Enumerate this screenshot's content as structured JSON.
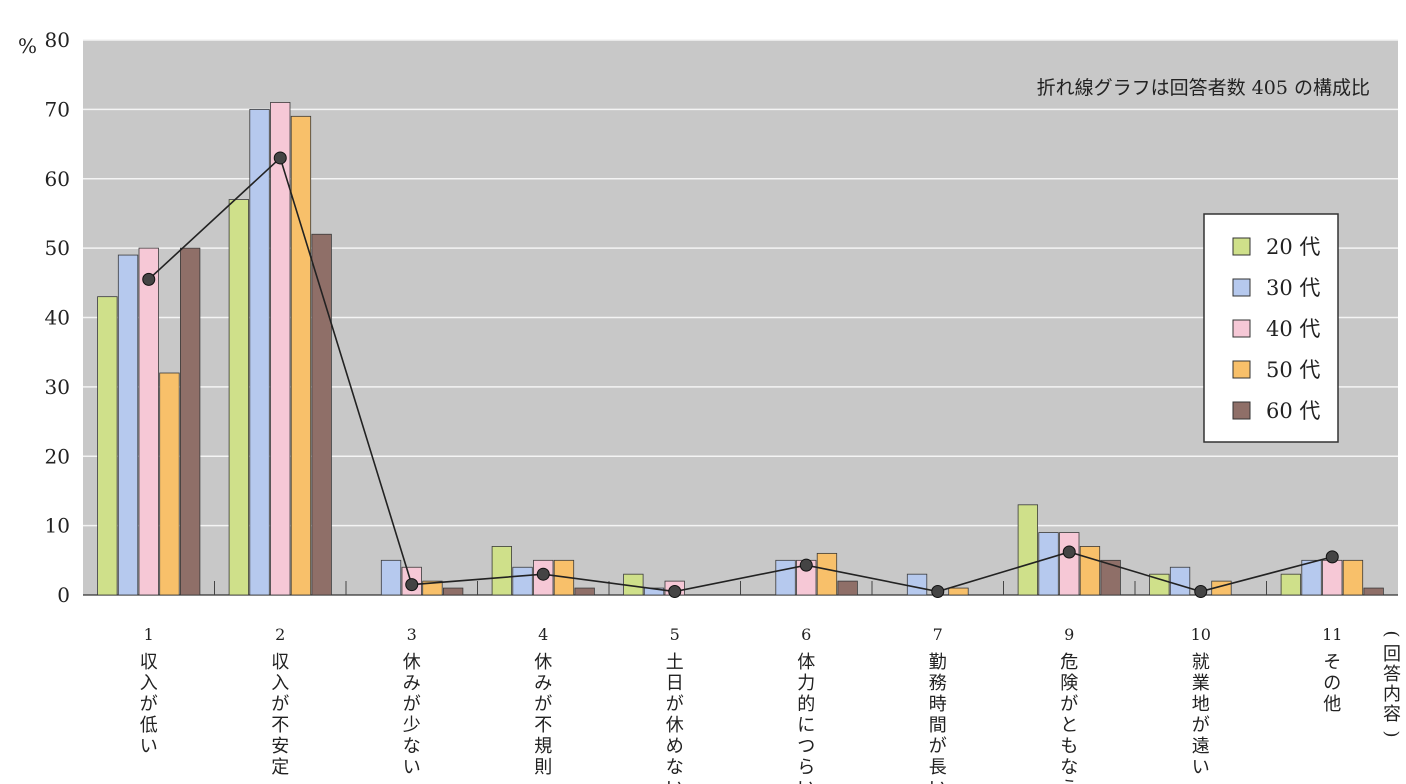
{
  "chart_data": {
    "type": "bar",
    "y_unit": "%",
    "x_unit": "(回答内容)",
    "note": "折れ線グラフは回答者数 405 の構成比",
    "ylim": [
      0,
      80
    ],
    "y_ticks": [
      0,
      10,
      20,
      30,
      40,
      50,
      60,
      70,
      80
    ],
    "grid": true,
    "legend_position": "right",
    "categories": [
      {
        "num": "1",
        "label": "収入が低い"
      },
      {
        "num": "2",
        "label": "収入が不安定"
      },
      {
        "num": "3",
        "label": "休みが少ない"
      },
      {
        "num": "4",
        "label": "休みが不規則"
      },
      {
        "num": "5",
        "label": "土日が休めない"
      },
      {
        "num": "6",
        "label": "体力的につらい"
      },
      {
        "num": "7",
        "label": "勤務時間が長い"
      },
      {
        "num": "9",
        "label": "危険がともなう"
      },
      {
        "num": "10",
        "label": "就業地が遠い"
      },
      {
        "num": "11",
        "label": "その他"
      }
    ],
    "series": [
      {
        "name": "20 代",
        "color": "#cfe08a",
        "values": [
          43,
          57,
          0,
          7,
          3,
          0,
          0,
          13,
          3,
          3
        ]
      },
      {
        "name": "30 代",
        "color": "#b6c9ee",
        "values": [
          49,
          70,
          5,
          4,
          1,
          5,
          3,
          9,
          4,
          5
        ]
      },
      {
        "name": "40 代",
        "color": "#f6c8d6",
        "values": [
          50,
          71,
          4,
          5,
          2,
          5,
          0,
          9,
          0,
          5
        ]
      },
      {
        "name": "50 代",
        "color": "#f8c06a",
        "values": [
          32,
          69,
          2,
          5,
          0,
          6,
          1,
          7,
          2,
          5
        ]
      },
      {
        "name": "60 代",
        "color": "#8f6f68",
        "values": [
          50,
          52,
          1,
          1,
          0,
          2,
          0,
          5,
          0,
          1
        ]
      }
    ],
    "line": {
      "color": "#222222",
      "values": [
        45.5,
        63,
        1.5,
        3,
        0.5,
        4.3,
        0.5,
        6.2,
        0.5,
        5.5
      ]
    }
  }
}
